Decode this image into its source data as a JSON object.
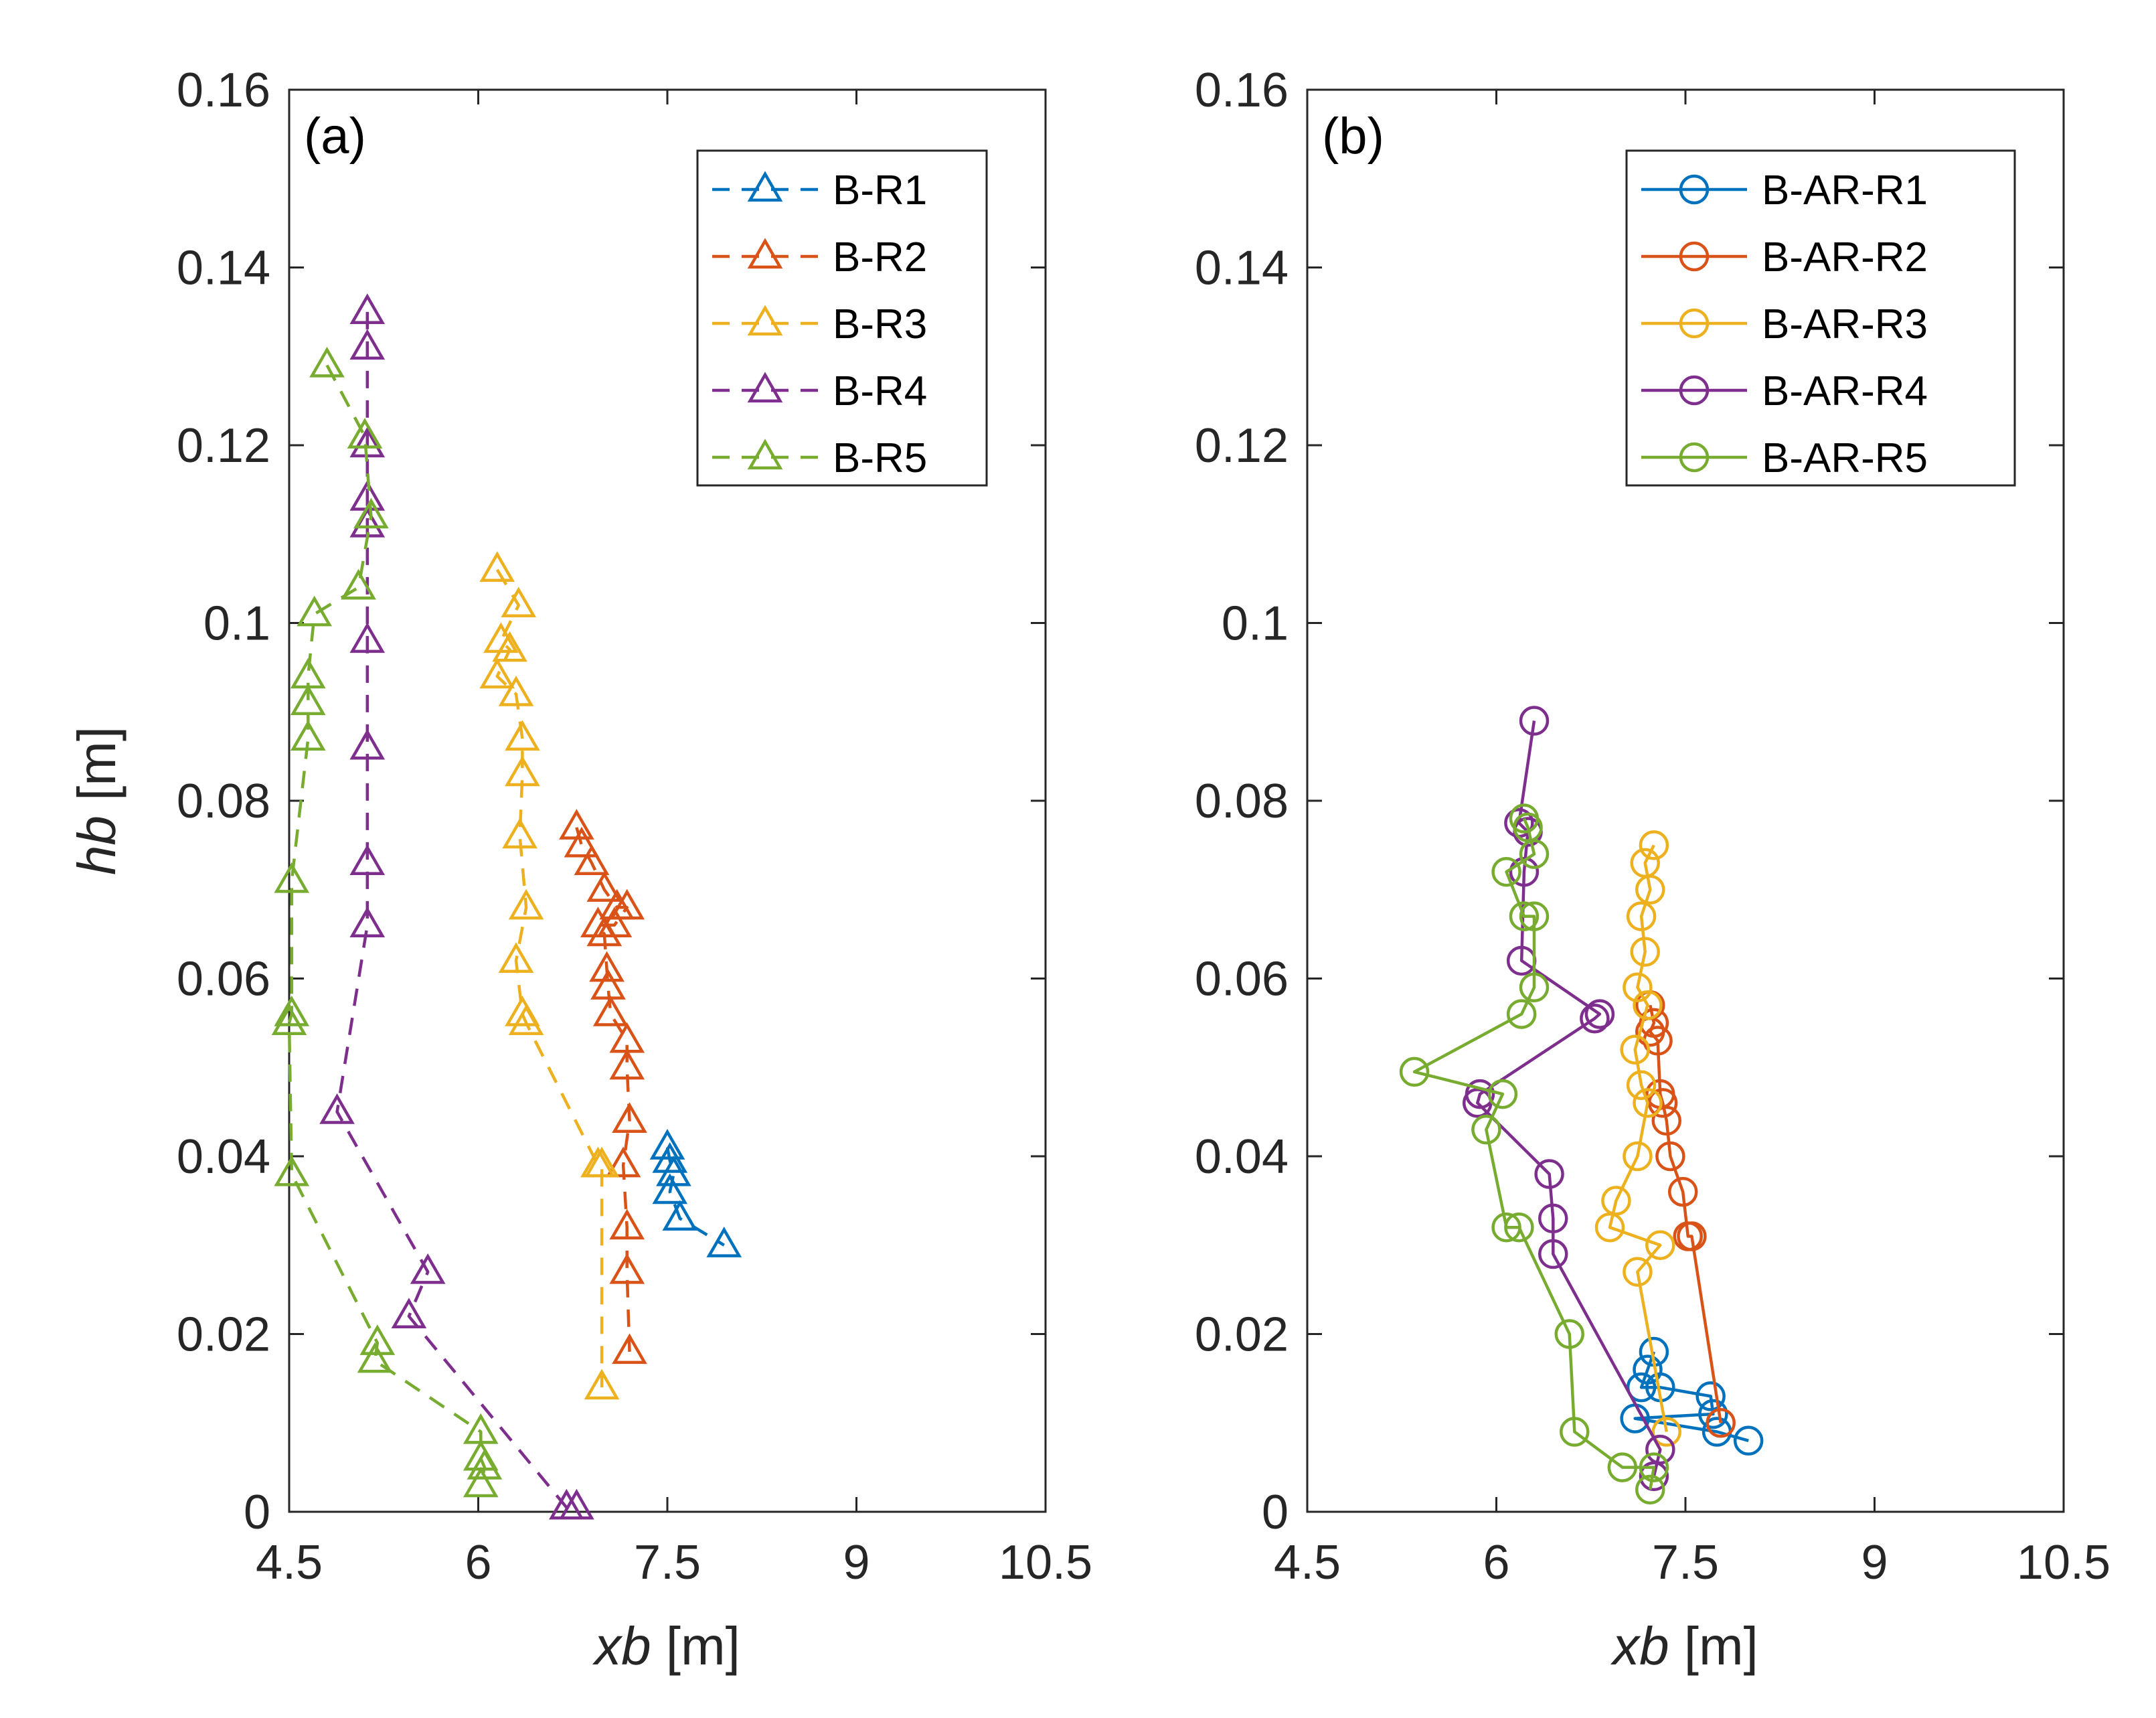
{
  "chart_data": [
    {
      "type": "line",
      "panel": "(a)",
      "xlabel": "xb",
      "ylabel": "hb",
      "unit": "[m]",
      "xlim": [
        4.5,
        10.5
      ],
      "ylim": [
        0,
        0.16
      ],
      "xticks": [
        "4.5",
        "6",
        "7.5",
        "9",
        "10.5"
      ],
      "yticks": [
        "0",
        "0.02",
        "0.04",
        "0.06",
        "0.08",
        "0.1",
        "0.12",
        "0.14",
        "0.16"
      ],
      "grid": false,
      "legend_position": "top-right",
      "marker": "triangle",
      "line_style": "dashed",
      "series": [
        {
          "name": "B-R1",
          "color": "#0072BD",
          "points": [
            [
              7.5,
              0.041
            ],
            [
              7.52,
              0.0395
            ],
            [
              7.55,
              0.038
            ],
            [
              7.52,
              0.036
            ],
            [
              7.6,
              0.033
            ],
            [
              7.95,
              0.03
            ]
          ]
        },
        {
          "name": "B-R2",
          "color": "#D95319",
          "points": [
            [
              6.78,
              0.077
            ],
            [
              6.82,
              0.075
            ],
            [
              6.9,
              0.073
            ],
            [
              7.0,
              0.07
            ],
            [
              7.1,
              0.068
            ],
            [
              7.18,
              0.068
            ],
            [
              7.08,
              0.066
            ],
            [
              6.95,
              0.066
            ],
            [
              7.0,
              0.065
            ],
            [
              7.02,
              0.061
            ],
            [
              7.03,
              0.059
            ],
            [
              7.05,
              0.056
            ],
            [
              7.18,
              0.053
            ],
            [
              7.18,
              0.05
            ],
            [
              7.2,
              0.044
            ],
            [
              7.15,
              0.039
            ],
            [
              7.18,
              0.032
            ],
            [
              7.18,
              0.027
            ],
            [
              7.2,
              0.018
            ]
          ]
        },
        {
          "name": "B-R3",
          "color": "#EDB120",
          "points": [
            [
              6.15,
              0.106
            ],
            [
              6.32,
              0.102
            ],
            [
              6.18,
              0.098
            ],
            [
              6.25,
              0.097
            ],
            [
              6.15,
              0.094
            ],
            [
              6.3,
              0.092
            ],
            [
              6.35,
              0.087
            ],
            [
              6.35,
              0.083
            ],
            [
              6.33,
              0.076
            ],
            [
              6.38,
              0.068
            ],
            [
              6.3,
              0.062
            ],
            [
              6.35,
              0.056
            ],
            [
              6.38,
              0.055
            ],
            [
              6.95,
              0.039
            ],
            [
              6.98,
              0.039
            ],
            [
              6.98,
              0.014
            ]
          ]
        },
        {
          "name": "B-R4",
          "color": "#7E2F8E",
          "points": [
            [
              5.12,
              0.135
            ],
            [
              5.12,
              0.131
            ],
            [
              5.12,
              0.12
            ],
            [
              5.12,
              0.114
            ],
            [
              5.12,
              0.111
            ],
            [
              5.12,
              0.098
            ],
            [
              5.12,
              0.086
            ],
            [
              5.12,
              0.073
            ],
            [
              5.12,
              0.066
            ],
            [
              4.88,
              0.045
            ],
            [
              5.6,
              0.027
            ],
            [
              5.45,
              0.022
            ],
            [
              6.7,
              0.0005
            ],
            [
              6.78,
              0.0005
            ]
          ]
        },
        {
          "name": "B-R5",
          "color": "#77AC30",
          "points": [
            [
              4.8,
              0.129
            ],
            [
              5.1,
              0.121
            ],
            [
              5.15,
              0.112
            ],
            [
              5.05,
              0.104
            ],
            [
              4.7,
              0.101
            ],
            [
              4.65,
              0.094
            ],
            [
              4.65,
              0.091
            ],
            [
              4.65,
              0.087
            ],
            [
              4.52,
              0.071
            ],
            [
              4.52,
              0.056
            ],
            [
              4.5,
              0.055
            ],
            [
              4.52,
              0.038
            ],
            [
              5.2,
              0.019
            ],
            [
              5.18,
              0.017
            ],
            [
              6.02,
              0.009
            ],
            [
              6.02,
              0.006
            ],
            [
              6.05,
              0.005
            ],
            [
              6.02,
              0.003
            ]
          ]
        }
      ]
    },
    {
      "type": "line",
      "panel": "(b)",
      "xlabel": "xb",
      "ylabel": "",
      "unit": "[m]",
      "xlim": [
        4.5,
        10.5
      ],
      "ylim": [
        0,
        0.16
      ],
      "xticks": [
        "4.5",
        "6",
        "7.5",
        "9",
        "10.5"
      ],
      "yticks": [
        "0",
        "0.02",
        "0.04",
        "0.06",
        "0.08",
        "0.1",
        "0.12",
        "0.14",
        "0.16"
      ],
      "grid": false,
      "legend_position": "top-right",
      "marker": "circle",
      "line_style": "solid",
      "series": [
        {
          "name": "B-AR-R1",
          "color": "#0072BD",
          "points": [
            [
              7.25,
              0.018
            ],
            [
              7.2,
              0.016
            ],
            [
              7.15,
              0.014
            ],
            [
              7.3,
              0.014
            ],
            [
              7.7,
              0.013
            ],
            [
              7.72,
              0.011
            ],
            [
              7.1,
              0.0105
            ],
            [
              7.75,
              0.009
            ],
            [
              8.0,
              0.008
            ]
          ]
        },
        {
          "name": "B-AR-R2",
          "color": "#D95319",
          "points": [
            [
              7.22,
              0.057
            ],
            [
              7.25,
              0.055
            ],
            [
              7.22,
              0.054
            ],
            [
              7.28,
              0.053
            ],
            [
              7.3,
              0.047
            ],
            [
              7.32,
              0.046
            ],
            [
              7.35,
              0.044
            ],
            [
              7.38,
              0.04
            ],
            [
              7.48,
              0.036
            ],
            [
              7.52,
              0.031
            ],
            [
              7.55,
              0.031
            ],
            [
              7.78,
              0.01
            ]
          ]
        },
        {
          "name": "B-AR-R3",
          "color": "#EDB120",
          "points": [
            [
              7.25,
              0.075
            ],
            [
              7.18,
              0.073
            ],
            [
              7.22,
              0.07
            ],
            [
              7.15,
              0.067
            ],
            [
              7.18,
              0.063
            ],
            [
              7.12,
              0.059
            ],
            [
              7.2,
              0.057
            ],
            [
              7.1,
              0.052
            ],
            [
              7.15,
              0.048
            ],
            [
              7.2,
              0.046
            ],
            [
              7.12,
              0.04
            ],
            [
              6.95,
              0.035
            ],
            [
              6.9,
              0.032
            ],
            [
              7.3,
              0.03
            ],
            [
              7.12,
              0.027
            ],
            [
              7.35,
              0.009
            ]
          ]
        },
        {
          "name": "B-AR-R4",
          "color": "#7E2F8E",
          "points": [
            [
              6.3,
              0.089
            ],
            [
              6.18,
              0.0775
            ],
            [
              6.25,
              0.0765
            ],
            [
              6.22,
              0.072
            ],
            [
              6.2,
              0.062
            ],
            [
              6.82,
              0.056
            ],
            [
              6.78,
              0.0555
            ],
            [
              5.87,
              0.047
            ],
            [
              5.85,
              0.046
            ],
            [
              6.42,
              0.038
            ],
            [
              6.45,
              0.033
            ],
            [
              6.45,
              0.029
            ],
            [
              7.3,
              0.007
            ],
            [
              7.25,
              0.004
            ]
          ]
        },
        {
          "name": "B-AR-R5",
          "color": "#77AC30",
          "points": [
            [
              6.22,
              0.078
            ],
            [
              6.25,
              0.077
            ],
            [
              6.3,
              0.074
            ],
            [
              6.08,
              0.072
            ],
            [
              6.22,
              0.067
            ],
            [
              6.3,
              0.067
            ],
            [
              6.3,
              0.059
            ],
            [
              6.2,
              0.056
            ],
            [
              5.35,
              0.0495
            ],
            [
              6.05,
              0.047
            ],
            [
              5.92,
              0.043
            ],
            [
              6.08,
              0.032
            ],
            [
              6.18,
              0.032
            ],
            [
              6.58,
              0.02
            ],
            [
              6.62,
              0.009
            ],
            [
              7.0,
              0.005
            ],
            [
              7.25,
              0.005
            ],
            [
              7.22,
              0.0025
            ]
          ]
        }
      ]
    }
  ]
}
